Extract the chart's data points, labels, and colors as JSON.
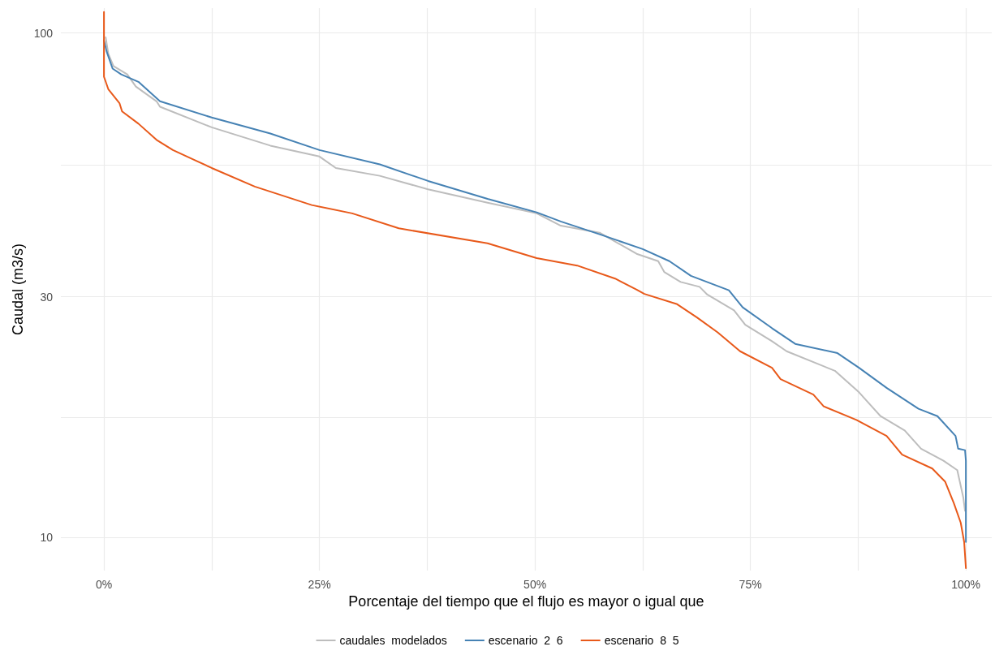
{
  "chart_data": {
    "type": "line",
    "xlabel": "Porcentaje del tiempo que el flujo es mayor o igual que",
    "ylabel": "Caudal (m3/s)",
    "log": "y",
    "grid": true,
    "legend": "bottom",
    "marker": "none",
    "line_style": "solid",
    "xlim": [
      -5,
      103
    ],
    "ylim": [
      8.6,
      112
    ],
    "xticks": [
      {
        "value": 0,
        "label": "0%"
      },
      {
        "value": 12.5,
        "label": null
      },
      {
        "value": 25,
        "label": "25%"
      },
      {
        "value": 37.5,
        "label": null
      },
      {
        "value": 50,
        "label": "50%"
      },
      {
        "value": 62.5,
        "label": null
      },
      {
        "value": 75,
        "label": "75%"
      },
      {
        "value": 87.5,
        "label": null
      },
      {
        "value": 100,
        "label": "100%"
      }
    ],
    "yticks": [
      10,
      {
        "value": 17.3,
        "label": null
      },
      30,
      {
        "value": 54.8,
        "label": null
      },
      100
    ],
    "series": [
      {
        "name": "caudales  modelados",
        "color": "#bdbdbd",
        "x": [
          0.2,
          0.5,
          1.1,
          2.7,
          3.7,
          6.1,
          6.5,
          12.5,
          19.3,
          25,
          26.9,
          32,
          37.6,
          44.5,
          50.2,
          53,
          57.5,
          61.8,
          64.3,
          65,
          66.9,
          69.1,
          70,
          73.1,
          74.4,
          77.5,
          79.2,
          84.8,
          87.6,
          90.1,
          92.9,
          94.8,
          97.4,
          99,
          99.7,
          99.9
        ],
        "values": [
          98,
          91,
          86,
          82.8,
          78.3,
          73.2,
          71.4,
          65,
          59.8,
          56.9,
          54,
          52.1,
          49,
          46.1,
          43.9,
          41.5,
          40.2,
          36.5,
          35.3,
          33.6,
          32.1,
          31.4,
          30.3,
          28.2,
          26.4,
          24.5,
          23.4,
          21.4,
          19.4,
          17.4,
          16.3,
          15,
          14.2,
          13.6,
          12,
          11.3
        ]
      },
      {
        "name": "escenario  2  6",
        "color": "#4682b4",
        "x": [
          0,
          0.3,
          1,
          2,
          4,
          6.5,
          12.5,
          19.3,
          25,
          32,
          37.6,
          44.5,
          50.2,
          53,
          57.5,
          62.5,
          65.6,
          68.1,
          72.5,
          74.1,
          77.5,
          80.2,
          85.1,
          87.6,
          90.8,
          94.5,
          96.7,
          98.8,
          99.1,
          99.9,
          100,
          100
        ],
        "values": [
          96.7,
          92,
          85,
          82.8,
          80,
          73.2,
          68,
          63.2,
          58.6,
          54.9,
          50.9,
          46.9,
          44.1,
          42.3,
          39.9,
          37.3,
          35.3,
          33,
          30.9,
          28.6,
          26,
          24.2,
          23.2,
          21.7,
          19.8,
          18,
          17.4,
          15.9,
          15,
          14.9,
          14.2,
          9.8
        ]
      },
      {
        "name": "escenario  8  5",
        "color": "#e8591a",
        "x": [
          0,
          0,
          0.5,
          1.8,
          2.1,
          4,
          6.1,
          8,
          10.6,
          12.5,
          17.5,
          24.1,
          28.8,
          34.2,
          44.5,
          50.2,
          54.9,
          59.3,
          61.8,
          62.7,
          66.5,
          68.8,
          71.2,
          73.8,
          77.5,
          78.5,
          82.3,
          83.5,
          87.3,
          90.8,
          92.6,
          96.1,
          97.6,
          98.6,
          99.4,
          99.8,
          100
        ],
        "values": [
          110,
          81.9,
          77.4,
          72.6,
          69.9,
          66.1,
          61.4,
          58.6,
          55.9,
          54,
          49.6,
          45.6,
          43.9,
          41,
          38.3,
          35.8,
          34.6,
          32.6,
          31,
          30.4,
          29,
          27.3,
          25.5,
          23.4,
          21.7,
          20.6,
          19.2,
          18.2,
          17.1,
          15.9,
          14.6,
          13.7,
          12.9,
          11.7,
          10.7,
          9.8,
          8.7
        ]
      }
    ]
  }
}
